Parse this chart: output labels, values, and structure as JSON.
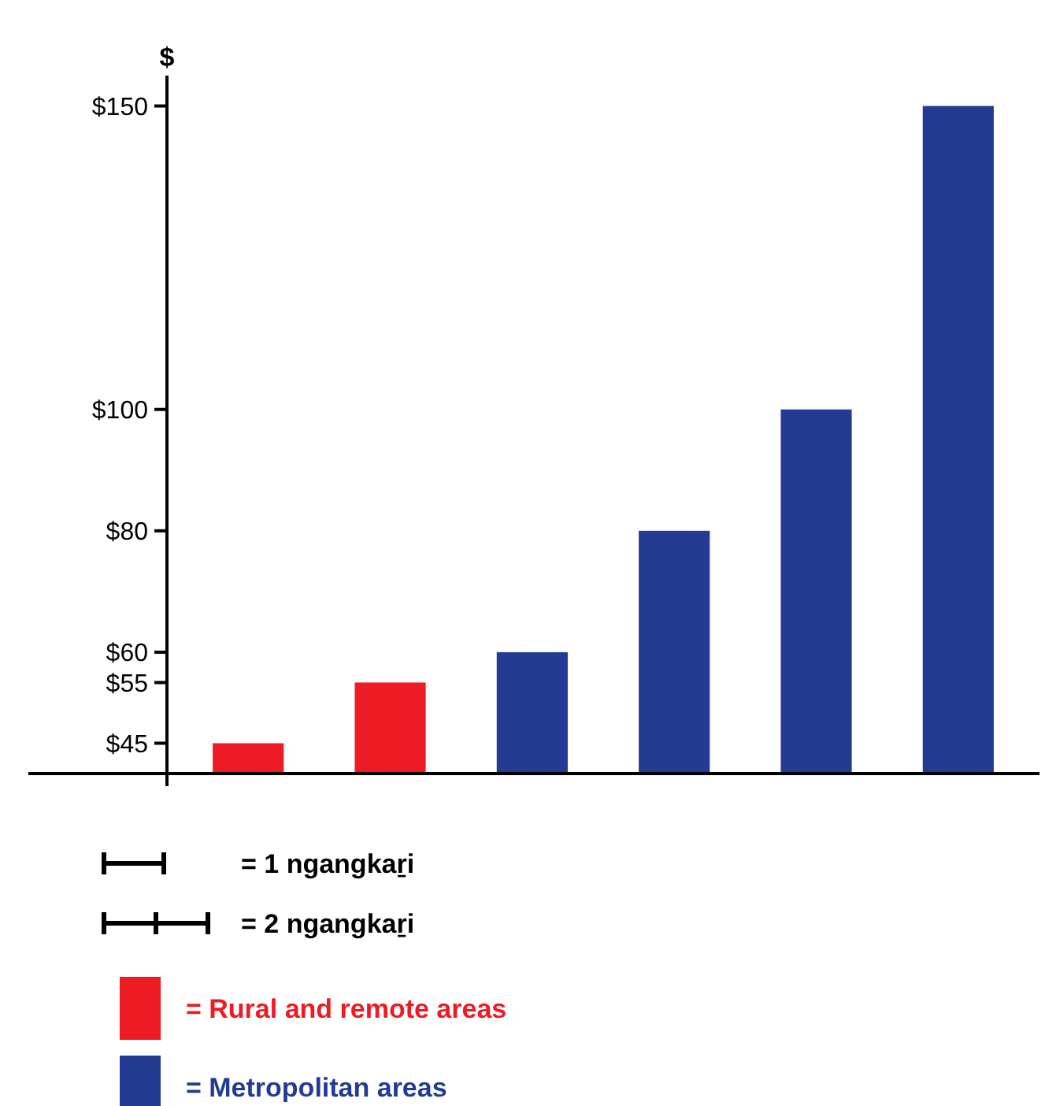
{
  "chart_data": {
    "type": "bar",
    "ylabel": "$",
    "categories": [
      null,
      null,
      null,
      null,
      null,
      null
    ],
    "series": [
      {
        "name": "= Rural and remote areas",
        "color": "#ed1c24",
        "values": [
          45,
          55,
          null,
          null,
          null,
          null
        ]
      },
      {
        "name": "= Metropolitan areas",
        "color": "#233b93",
        "values": [
          null,
          null,
          60,
          80,
          100,
          150
        ]
      }
    ],
    "ylim": [
      40,
      155
    ],
    "yticks": [
      {
        "value": 45,
        "label": "$45"
      },
      {
        "value": 55,
        "label": "$55"
      },
      {
        "value": 60,
        "label": "$60"
      },
      {
        "value": 80,
        "label": "$80"
      },
      {
        "value": 100,
        "label": "$100"
      },
      {
        "value": 150,
        "label": "$150"
      }
    ],
    "annotations": [
      "= 1 ngangkaṟi",
      "= 2 ngangkaṟi"
    ],
    "stacked": true,
    "legend": "bottom"
  }
}
